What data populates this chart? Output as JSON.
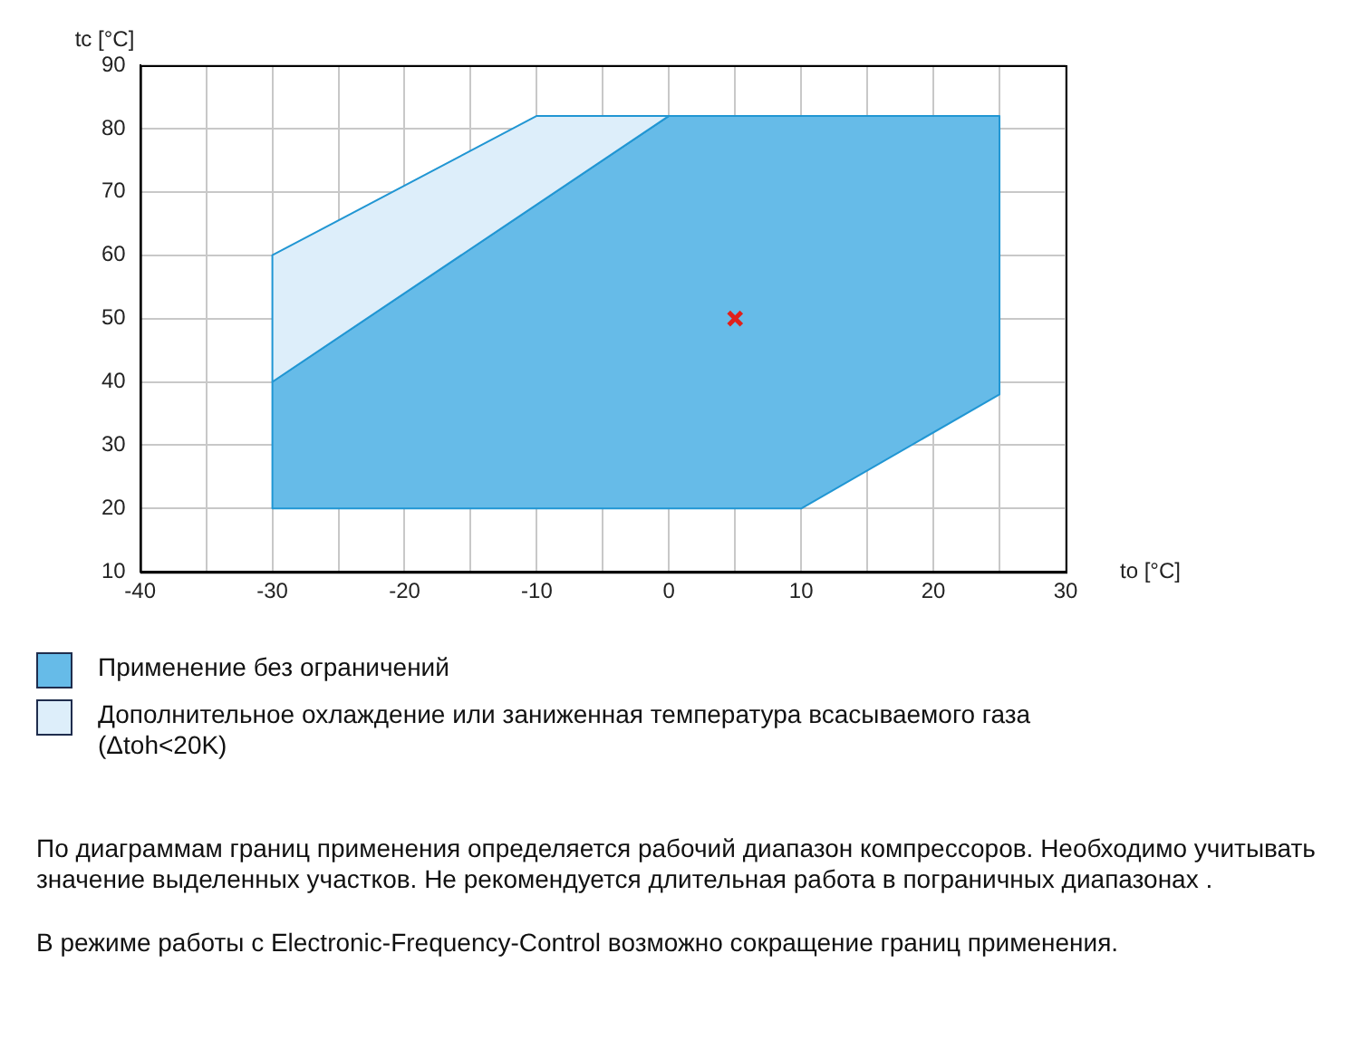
{
  "chart_data": {
    "type": "area",
    "xlabel": "to [°C]",
    "ylabel": "tc [°C]",
    "xlim": [
      -40,
      30
    ],
    "xticks": [
      -40,
      {
        "value": -35,
        "label": null
      },
      -30,
      {
        "value": -25,
        "label": null
      },
      -20,
      {
        "value": -15,
        "label": null
      },
      -10,
      {
        "value": -5,
        "label": null
      },
      0,
      {
        "value": 5,
        "label": null
      },
      10,
      {
        "value": 15,
        "label": null
      },
      20,
      {
        "value": 25,
        "label": null
      },
      30
    ],
    "ylim": [
      10,
      90
    ],
    "yticks": [
      10,
      20,
      30,
      40,
      50,
      60,
      70,
      80,
      90
    ],
    "grid": true,
    "legend": "bottom",
    "series": [
      {
        "name": "Применение без ограничений",
        "color": "#66bbe8",
        "x": [
          -30,
          10,
          25,
          25,
          0,
          -30,
          -30
        ],
        "values": [
          20,
          20,
          38,
          82,
          82,
          40,
          20
        ]
      },
      {
        "name": "Дополнительное охлаждение или заниженная температура всасываемого газа (Δtoh<20K)",
        "color": "#ddeefa",
        "x": [
          -30,
          -30,
          -10,
          0,
          -30
        ],
        "values": [
          40,
          60,
          82,
          82,
          40
        ]
      },
      {
        "type": "scatter",
        "marker": "cross",
        "color": "#e0201b",
        "x": [
          5
        ],
        "values": [
          50
        ]
      }
    ],
    "annotations": [
      "По диаграммам границ применения определяется рабочий диапазон компрессоров. Необходимо учитывать значение выделенных участков. Не рекомендуется длительная работа в пограничных диапазонах .",
      "В режиме работы с Electronic-Frequency-Control возможно сокращение границ применения."
    ]
  }
}
